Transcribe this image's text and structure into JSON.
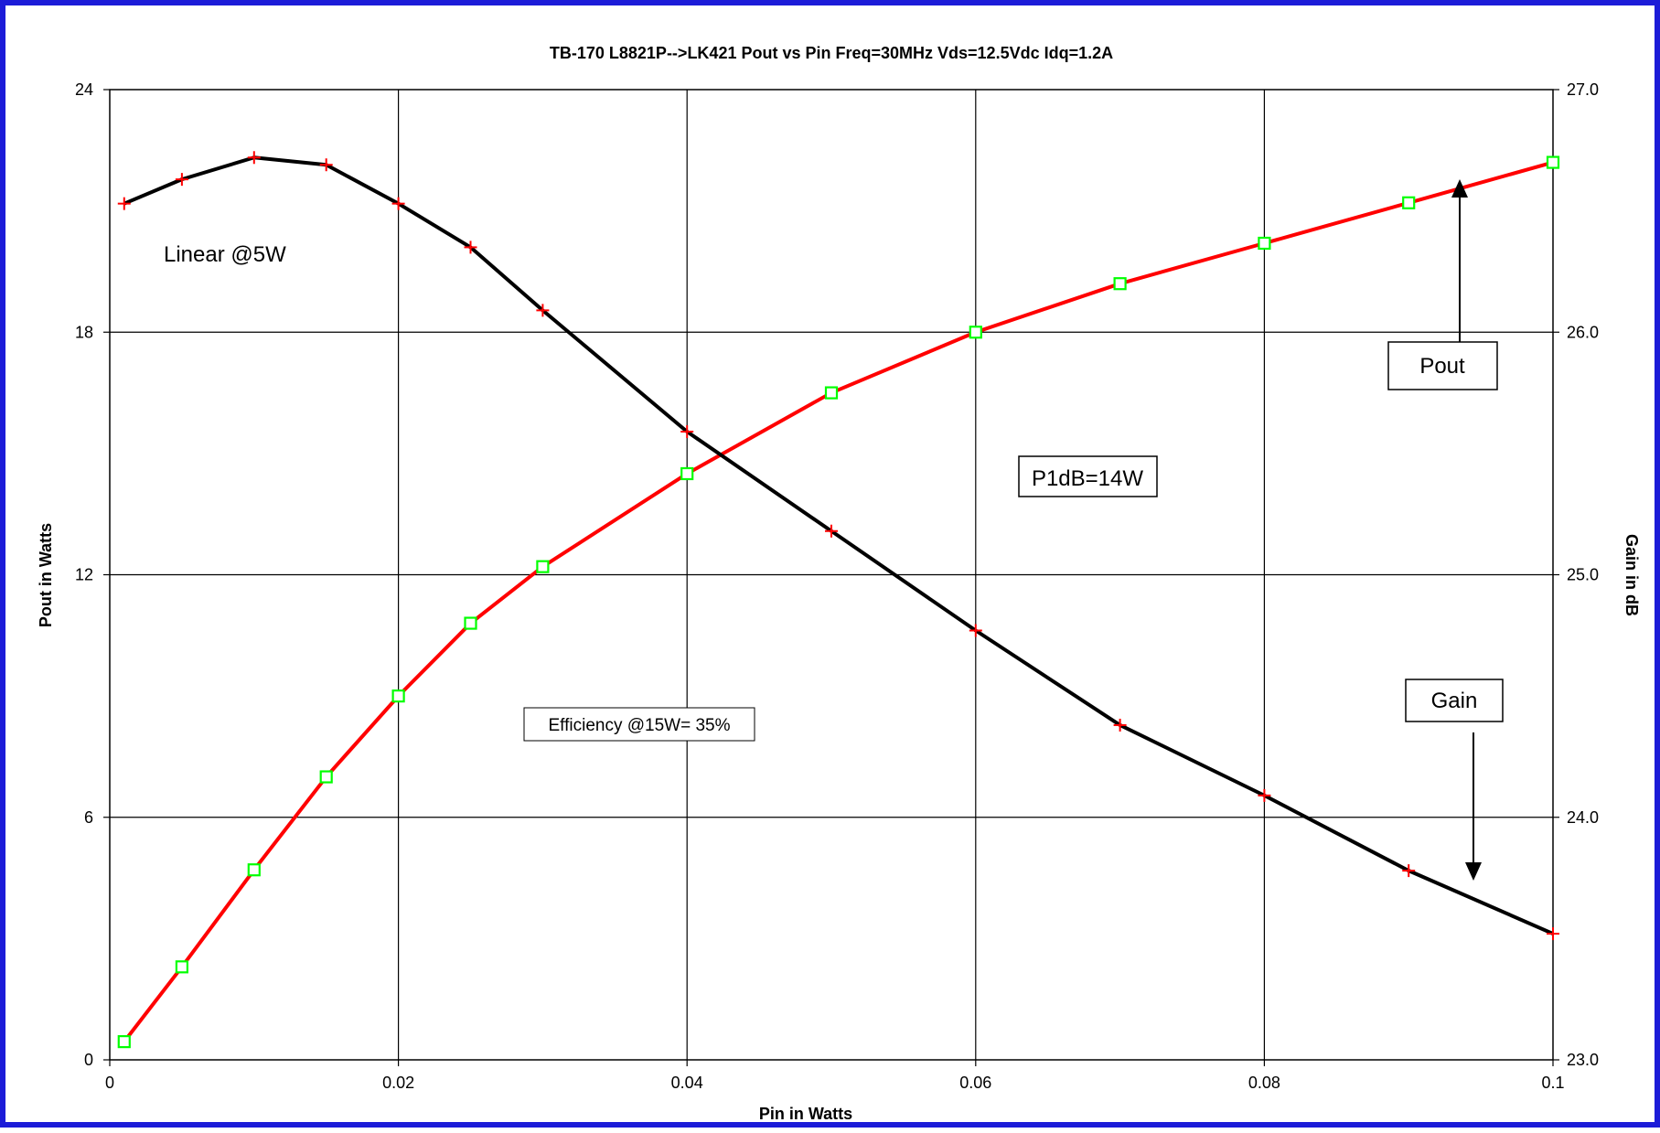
{
  "chart_data": {
    "type": "line",
    "title": "TB-170 L8821P-->LK421 Pout vs Pin Freq=30MHz Vds=12.5Vdc Idq=1.2A",
    "xlabel": "Pin in Watts",
    "ylabel_left": "Pout in Watts",
    "ylabel_right": "Gain in dB",
    "xlim": [
      0,
      0.1
    ],
    "ylim_left": [
      0,
      24
    ],
    "ylim_right": [
      23.0,
      27.0
    ],
    "x_ticks": [
      "0",
      "0.02",
      "0.04",
      "0.06",
      "0.08",
      "0.1"
    ],
    "y_left_ticks": [
      "0",
      "6",
      "12",
      "18",
      "24"
    ],
    "y_right_ticks": [
      "23.0",
      "24.0",
      "25.0",
      "26.0",
      "27.0"
    ],
    "grid": true,
    "series": [
      {
        "name": "Pout",
        "axis": "left",
        "color": "#ff0000",
        "marker": "square",
        "marker_color": "#00ff00",
        "x": [
          0.001,
          0.005,
          0.01,
          0.015,
          0.02,
          0.025,
          0.03,
          0.04,
          0.05,
          0.06,
          0.07,
          0.08,
          0.09,
          0.1
        ],
        "values": [
          0.45,
          2.3,
          4.7,
          7.0,
          9.0,
          10.8,
          12.2,
          14.5,
          16.5,
          18.0,
          19.2,
          20.2,
          21.2,
          22.2
        ]
      },
      {
        "name": "Gain",
        "axis": "right",
        "color": "#000000",
        "marker": "plus",
        "marker_color": "#ff0000",
        "x": [
          0.001,
          0.005,
          0.01,
          0.015,
          0.02,
          0.025,
          0.03,
          0.04,
          0.05,
          0.06,
          0.07,
          0.08,
          0.09,
          0.1
        ],
        "values": [
          26.53,
          26.63,
          26.72,
          26.69,
          26.53,
          26.35,
          26.09,
          25.59,
          25.18,
          24.77,
          24.38,
          24.09,
          23.78,
          23.52
        ]
      }
    ],
    "annotations": {
      "linear": "Linear @5W",
      "p1db": "P1dB=14W",
      "efficiency": "Efficiency @15W= 35%",
      "pout_label": "Pout",
      "gain_label": "Gain"
    }
  }
}
